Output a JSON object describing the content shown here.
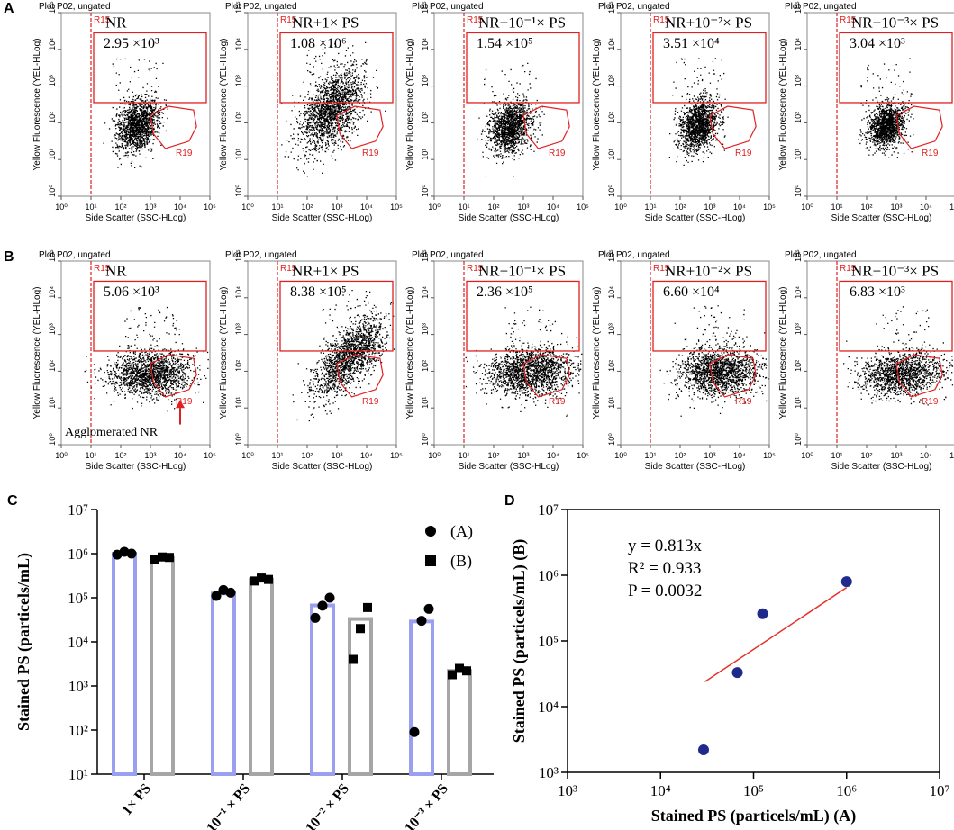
{
  "flow": {
    "xlabel": "Side Scatter (SSC-HLog)",
    "ylabel": "Yellow Fluorescence (YEL-HLog)",
    "ticks": [
      {
        "value": 1,
        "label": "10⁰"
      },
      {
        "value": 10,
        "label": "10¹"
      },
      {
        "value": 100,
        "label": "10²"
      },
      {
        "value": 1000,
        "label": "10³"
      },
      {
        "value": 10000,
        "label": "10⁴"
      },
      {
        "value": 100000,
        "label": "10⁵"
      }
    ],
    "rows": [
      {
        "letter": "A",
        "panels": [
          {
            "title": "Plot P02, ungated",
            "gate": "R15",
            "region": "R19",
            "sample": "NR",
            "count": "2.95 ×10³"
          },
          {
            "title": "Plot P02, ungated",
            "gate": "R15",
            "region": "R19",
            "sample": "NR+1× PS",
            "count": "1.08 ×10⁶"
          },
          {
            "title": "Plot P02, ungated",
            "gate": "R15",
            "region": "R19",
            "sample": "NR+10⁻¹× PS",
            "count": "1.54 ×10⁵"
          },
          {
            "title": "Plot P02, ungated",
            "gate": "R15",
            "region": "R19",
            "sample": "NR+10⁻²× PS",
            "count": "3.51 ×10⁴"
          },
          {
            "title": "Plot P02, ungated",
            "gate": "R15",
            "region": "R19",
            "sample": "NR+10⁻³× PS",
            "count": "3.04 ×10³"
          }
        ]
      },
      {
        "letter": "B",
        "annotation": "Agglomerated NR",
        "panels": [
          {
            "title": "Plot P02, ungated",
            "gate": "R15",
            "region": "R19",
            "sample": "NR",
            "count": "5.06 ×10³"
          },
          {
            "title": "Plot P02, ungated",
            "gate": "R15",
            "region": "R19",
            "sample": "NR+1× PS",
            "count": "8.38 ×10⁵"
          },
          {
            "title": "Plot P02, ungated",
            "gate": "R15",
            "region": "R19",
            "sample": "NR+10⁻¹× PS",
            "count": "2.36 ×10⁵"
          },
          {
            "title": "Plot P02, ungated",
            "gate": "R15",
            "region": "R19",
            "sample": "NR+10⁻²× PS",
            "count": "6.60 ×10⁴"
          },
          {
            "title": "Plot P02, ungated",
            "gate": "R15",
            "region": "R19",
            "sample": "NR+10⁻³× PS",
            "count": "6.83 ×10³"
          }
        ]
      }
    ]
  },
  "chart_data": [
    {
      "type": "bar",
      "letter": "C",
      "ylabel": "Stained PS (particels/mL)",
      "log_y": true,
      "categories": [
        "1× PS",
        "10⁻¹ × PS",
        "10⁻² × PS",
        "10⁻³ × PS"
      ],
      "ylim": [
        10,
        10000000
      ],
      "yticks": [
        {
          "value": 10,
          "label": "10¹"
        },
        {
          "value": 100,
          "label": "10²"
        },
        {
          "value": 1000,
          "label": "10³"
        },
        {
          "value": 10000,
          "label": "10⁴"
        },
        {
          "value": 100000,
          "label": "10⁵"
        },
        {
          "value": 1000000,
          "label": "10⁶"
        },
        {
          "value": 10000000,
          "label": "10⁷"
        }
      ],
      "legend": "upper right",
      "series": [
        {
          "name": "(A)",
          "color": "#9b9ff0",
          "marker": "circle",
          "values": [
            1000000,
            125000,
            67000,
            29000
          ],
          "points": [
            [
              950000,
              1100000,
              1000000
            ],
            [
              110000,
              150000,
              130000
            ],
            [
              35000,
              66000,
              100000
            ],
            [
              90,
              30000,
              56000
            ]
          ]
        },
        {
          "name": "(B)",
          "color": "#a6a6a6",
          "marker": "square",
          "values": [
            800000,
            260000,
            33000,
            2200
          ],
          "points": [
            [
              750000,
              840000,
              820000
            ],
            [
              240000,
              280000,
              260000
            ],
            [
              4000,
              20000,
              60000
            ],
            [
              1800,
              2500,
              2200
            ]
          ]
        }
      ]
    },
    {
      "type": "scatter",
      "letter": "D",
      "xlabel": "Stained PS (particels/mL) (A)",
      "ylabel": "Stained PS (particels/mL) (B)",
      "log_x": true,
      "log_y": true,
      "color": "#1f2a8c",
      "fit_color": "#e8302a",
      "x": [
        1000000,
        125000,
        67000,
        29000
      ],
      "values": [
        800000,
        260000,
        33000,
        2200
      ],
      "fit": {
        "x": [
          30000,
          1000000
        ],
        "y": [
          24000,
          650000
        ]
      },
      "annotations": [
        "y = 0.813x",
        "R² = 0.933",
        "P = 0.0032"
      ],
      "xlim": [
        1000,
        10000000
      ],
      "ylim": [
        1000,
        10000000
      ],
      "xticks": [
        {
          "value": 1000,
          "label": "10³"
        },
        {
          "value": 10000,
          "label": "10⁴"
        },
        {
          "value": 100000,
          "label": "10⁵"
        },
        {
          "value": 1000000,
          "label": "10⁶"
        },
        {
          "value": 10000000,
          "label": "10⁷"
        }
      ],
      "yticks": [
        {
          "value": 1000,
          "label": "10³"
        },
        {
          "value": 10000,
          "label": "10⁴"
        },
        {
          "value": 100000,
          "label": "10⁵"
        },
        {
          "value": 1000000,
          "label": "10⁶"
        },
        {
          "value": 10000000,
          "label": "10⁷"
        }
      ]
    }
  ]
}
